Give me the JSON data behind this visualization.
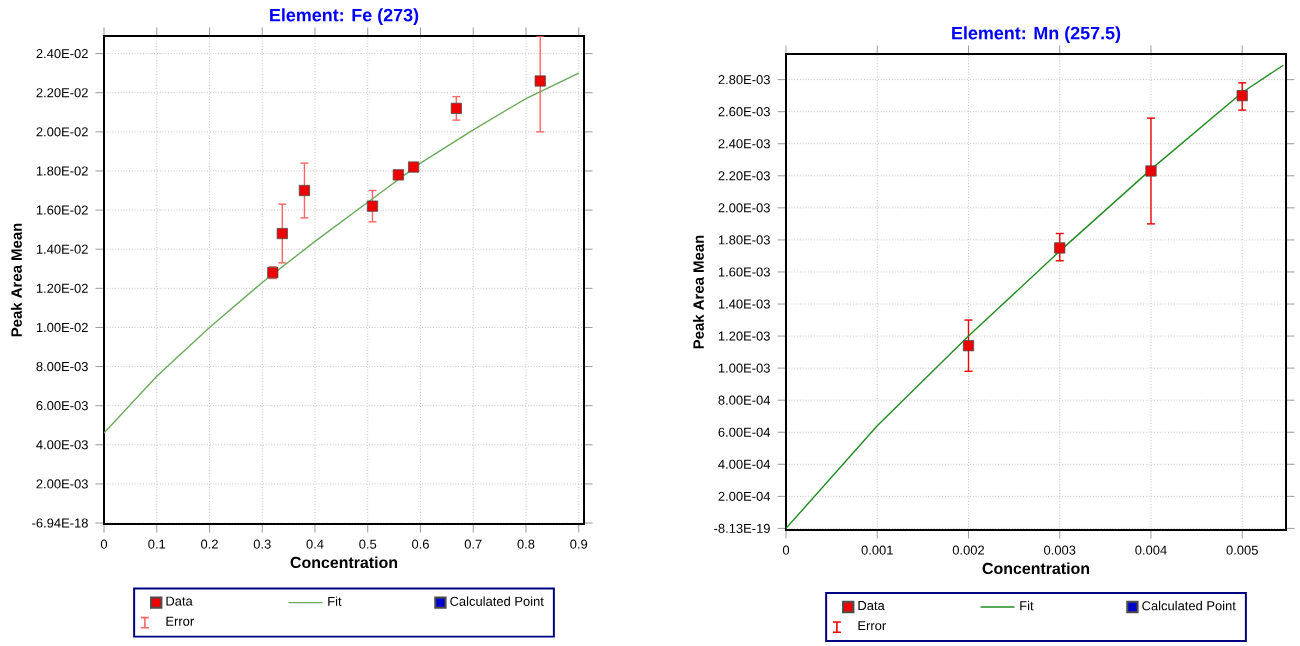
{
  "chart_data": [
    {
      "type": "scatter",
      "title": "Element: Fe (273)",
      "xlabel": "Concentration",
      "ylabel": "Peak Area Mean",
      "xlim": [
        0,
        0.91
      ],
      "ylim": [
        -5e-05,
        0.0249
      ],
      "xticks": [
        0,
        0.1,
        0.2,
        0.3,
        0.4,
        0.5,
        0.6,
        0.7,
        0.8,
        0.9
      ],
      "yticks": [
        {
          "value": -6.94e-18,
          "label": "-6.94E-18"
        },
        {
          "value": 0.002,
          "label": "2.00E-03"
        },
        {
          "value": 0.004,
          "label": "4.00E-03"
        },
        {
          "value": 0.006,
          "label": "6.00E-03"
        },
        {
          "value": 0.008,
          "label": "8.00E-03"
        },
        {
          "value": 0.01,
          "label": "1.00E-02"
        },
        {
          "value": 0.012,
          "label": "1.20E-02"
        },
        {
          "value": 0.014,
          "label": "1.40E-02"
        },
        {
          "value": 0.016,
          "label": "1.60E-02"
        },
        {
          "value": 0.018,
          "label": "1.80E-02"
        },
        {
          "value": 0.02,
          "label": "2.00E-02"
        },
        {
          "value": 0.022,
          "label": "2.20E-02"
        },
        {
          "value": 0.024,
          "label": "2.40E-02"
        }
      ],
      "grid": true,
      "legend": "bottom",
      "series": [
        {
          "name": "Data",
          "marker": "square",
          "color": "#ee0000",
          "x": [
            0.32,
            0.338,
            0.38,
            0.509,
            0.558,
            0.587,
            0.668,
            0.827
          ],
          "values": [
            0.0128,
            0.0148,
            0.017,
            0.0162,
            0.0178,
            0.0182,
            0.0212,
            0.0226
          ],
          "errors": [
            0.0003,
            0.0015,
            0.0014,
            0.0008,
            null,
            null,
            0.0006,
            [
              0.02,
              0.0249
            ]
          ]
        },
        {
          "name": "Fit",
          "type": "line",
          "color": "#6aaa5a",
          "x": [
            0,
            0.1,
            0.2,
            0.3,
            0.4,
            0.5,
            0.6,
            0.7,
            0.8,
            0.9
          ],
          "values": [
            0.0046,
            0.0075,
            0.01,
            0.0123,
            0.0144,
            0.0164,
            0.0184,
            0.0201,
            0.0217,
            0.023
          ]
        },
        {
          "name": "Calculated Point",
          "marker": "square",
          "color": "#0000cc"
        },
        {
          "name": "Error",
          "marker": "none",
          "color": "#ff6666"
        }
      ]
    },
    {
      "type": "scatter",
      "title": "Element: Mn (257.5)",
      "xlabel": "Concentration",
      "ylabel": "Peak Area Mean",
      "xlim": [
        0,
        0.00548
      ],
      "ylim": [
        -1e-05,
        0.00296
      ],
      "xticks": [
        0,
        0.001,
        0.002,
        0.003,
        0.004,
        0.005
      ],
      "yticks": [
        {
          "value": -8.13e-19,
          "label": "-8.13E-19"
        },
        {
          "value": 0.0002,
          "label": "2.00E-04"
        },
        {
          "value": 0.0004,
          "label": "4.00E-04"
        },
        {
          "value": 0.0006,
          "label": "6.00E-04"
        },
        {
          "value": 0.0008,
          "label": "8.00E-04"
        },
        {
          "value": 0.001,
          "label": "1.00E-03"
        },
        {
          "value": 0.0012,
          "label": "1.20E-03"
        },
        {
          "value": 0.0014,
          "label": "1.40E-03"
        },
        {
          "value": 0.0016,
          "label": "1.60E-03"
        },
        {
          "value": 0.0018,
          "label": "1.80E-03"
        },
        {
          "value": 0.002,
          "label": "2.00E-03"
        },
        {
          "value": 0.0022,
          "label": "2.20E-03"
        },
        {
          "value": 0.0024,
          "label": "2.40E-03"
        },
        {
          "value": 0.0026,
          "label": "2.60E-03"
        },
        {
          "value": 0.0028,
          "label": "2.80E-03"
        }
      ],
      "grid": true,
      "legend": "bottom",
      "series": [
        {
          "name": "Data",
          "marker": "square",
          "color": "#ee0000",
          "x": [
            0.002,
            0.003,
            0.004,
            0.005
          ],
          "values": [
            0.00114,
            0.00175,
            0.00223,
            0.0027
          ],
          "errors": [
            [
              0.00098,
              0.0013
            ],
            [
              0.00167,
              0.00184
            ],
            [
              0.0019,
              0.00256
            ],
            [
              0.00261,
              0.00278
            ]
          ]
        },
        {
          "name": "Fit",
          "type": "line",
          "color": "#228b22",
          "x": [
            0,
            0.001,
            0.002,
            0.003,
            0.004,
            0.005,
            0.00545
          ],
          "values": [
            0,
            0.00064,
            0.0012,
            0.00173,
            0.00224,
            0.00272,
            0.00289
          ]
        },
        {
          "name": "Calculated Point",
          "marker": "square",
          "color": "#0000cc"
        },
        {
          "name": "Error",
          "marker": "none",
          "color": "#ee0000"
        }
      ]
    }
  ]
}
